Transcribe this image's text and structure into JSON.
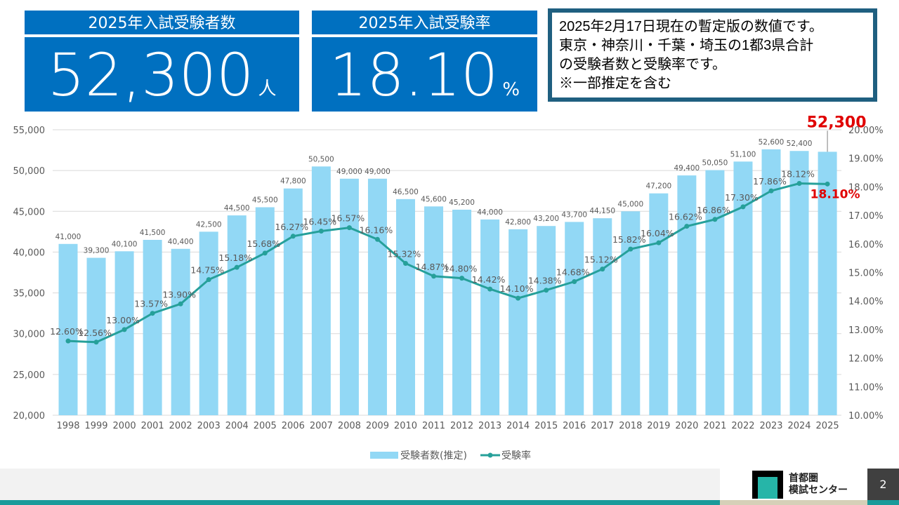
{
  "kpis": [
    {
      "title": "2025年入試受験者数",
      "value": "52,300",
      "unit": "人"
    },
    {
      "title": "2025年入試受験率",
      "value": "18.10",
      "unit": "%"
    }
  ],
  "note": {
    "lines": [
      "2025年2月17日現在の暫定版の数値です。",
      "東京・神奈川・千葉・埼玉の1都3県合計",
      "の受験者数と受験率です。",
      "※一部推定を含む"
    ]
  },
  "footer": {
    "logo_line1": "首都圏",
    "logo_line2": "模試センター",
    "page": "2"
  },
  "chart_data": {
    "type": "bar+line",
    "categories": [
      "1998",
      "1999",
      "2000",
      "2001",
      "2002",
      "2003",
      "2004",
      "2005",
      "2006",
      "2007",
      "2008",
      "2009",
      "2010",
      "2011",
      "2012",
      "2013",
      "2014",
      "2015",
      "2016",
      "2017",
      "2018",
      "2019",
      "2020",
      "2021",
      "2022",
      "2023",
      "2024",
      "2025"
    ],
    "series": [
      {
        "name": "受験者数(推定)",
        "type": "bar",
        "axis": "left",
        "color": "#92d8f5",
        "values": [
          41000,
          39300,
          40100,
          41500,
          40400,
          42500,
          44500,
          45500,
          47800,
          50500,
          49000,
          49000,
          46500,
          45600,
          45200,
          44000,
          42800,
          43200,
          43700,
          44150,
          45000,
          47200,
          49400,
          50050,
          51100,
          52600,
          52400,
          52300
        ],
        "labels": [
          "41,000",
          "39,300",
          "40,100",
          "41,500",
          "40,400",
          "42,500",
          "44,500",
          "45,500",
          "47,800",
          "50,500",
          "49,000",
          "49,000",
          "46,500",
          "45,600",
          "45,200",
          "44,000",
          "42,800",
          "43,200",
          "43,700",
          "44,150",
          "45,000",
          "47,200",
          "49,400",
          "50,050",
          "51,100",
          "52,600",
          "52,400",
          "52,300"
        ]
      },
      {
        "name": "受験率",
        "type": "line",
        "axis": "right",
        "color": "#26a09a",
        "values": [
          12.6,
          12.56,
          13.0,
          13.57,
          13.9,
          14.75,
          15.18,
          15.68,
          16.27,
          16.45,
          16.57,
          16.16,
          15.32,
          14.87,
          14.8,
          14.42,
          14.1,
          14.38,
          14.68,
          15.12,
          15.82,
          16.04,
          16.62,
          16.86,
          17.3,
          17.86,
          18.12,
          18.1
        ],
        "labels": [
          "12.60%",
          "12.56%",
          "13.00%",
          "13.57%",
          "13.90%",
          "14.75%",
          "15.18%",
          "15.68%",
          "16.27%",
          "16.45%",
          "16.57%",
          "16.16%",
          "15.32%",
          "14.87%",
          "14.80%",
          "14.42%",
          "14.10%",
          "14.38%",
          "14.68%",
          "15.12%",
          "15.82%",
          "16.04%",
          "16.62%",
          "16.86%",
          "17.30%",
          "17.86%",
          "18.12%",
          "18.10%"
        ]
      }
    ],
    "left_axis": {
      "range": [
        20000,
        55000
      ],
      "ticks": [
        "20,000",
        "25,000",
        "30,000",
        "35,000",
        "40,000",
        "45,000",
        "50,000",
        "55,000"
      ]
    },
    "right_axis": {
      "range": [
        10,
        20
      ],
      "ticks": [
        "10.00%",
        "11.00%",
        "12.00%",
        "13.00%",
        "14.00%",
        "15.00%",
        "16.00%",
        "17.00%",
        "18.00%",
        "19.00%",
        "20.00%"
      ]
    },
    "highlight_color": "#e00000",
    "grid": true,
    "legend": "bottom"
  }
}
